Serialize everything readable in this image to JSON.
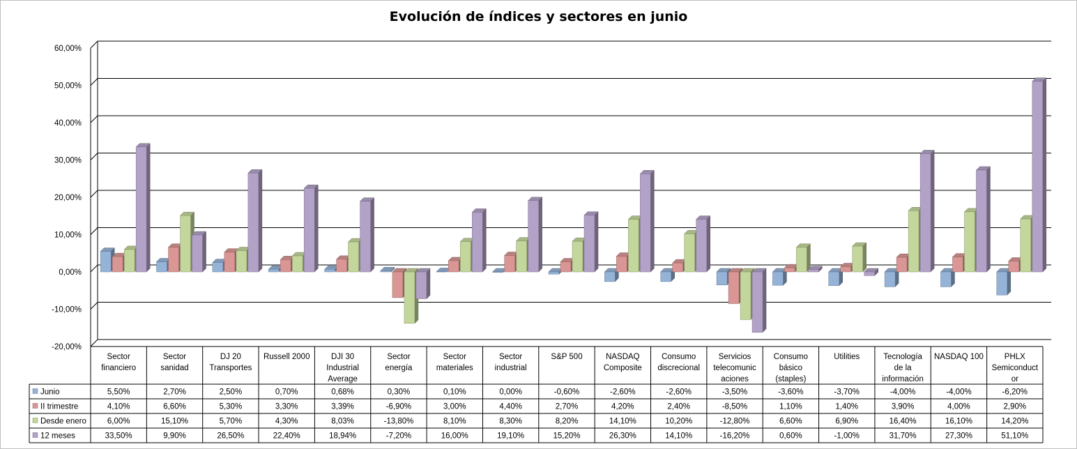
{
  "chart_data": {
    "type": "bar",
    "title": "Evolución de índices y sectores en junio",
    "categories": [
      "Sector financiero",
      "Sector sanidad",
      "DJ 20 Transportes",
      "Russell 2000",
      "DJI 30 Industrial Average",
      "Sector energía",
      "Sector materiales",
      "Sector industrial",
      "S&P 500",
      "NASDAQ Composite",
      "Consumo discrecional",
      "Servicios telecomunicaciones",
      "Consumo básico (staples)",
      "Utilities",
      "Tecnología de la información",
      "NASDAQ 100",
      "PHLX Semiconductor"
    ],
    "category_label_lines": [
      [
        "Sector",
        "financiero"
      ],
      [
        "Sector",
        "sanidad"
      ],
      [
        "DJ 20",
        "Transportes"
      ],
      [
        "Russell 2000"
      ],
      [
        "DJI 30",
        "Industrial",
        "Average"
      ],
      [
        "Sector",
        "energía"
      ],
      [
        "Sector",
        "materiales"
      ],
      [
        "Sector",
        "industrial"
      ],
      [
        "S&P 500"
      ],
      [
        "NASDAQ",
        "Composite"
      ],
      [
        "Consumo",
        "discrecional"
      ],
      [
        "Servicios",
        "telecomunic",
        "aciones"
      ],
      [
        "Consumo",
        "básico",
        "(staples)"
      ],
      [
        "Utilities"
      ],
      [
        "Tecnología",
        "de la",
        "información"
      ],
      [
        "NASDAQ 100"
      ],
      [
        "PHLX",
        "Semiconduct",
        "or"
      ]
    ],
    "series": [
      {
        "name": "Junio",
        "color": "#95b3d7",
        "values": [
          5.5,
          2.7,
          2.5,
          0.7,
          0.68,
          0.3,
          0.1,
          0.0,
          -0.6,
          -2.6,
          -2.6,
          -3.5,
          -3.6,
          -3.7,
          -4.0,
          -4.0,
          -6.2
        ],
        "labels": [
          "5,50%",
          "2,70%",
          "2,50%",
          "0,70%",
          "0,68%",
          "0,30%",
          "0,10%",
          "0,00%",
          "-0,60%",
          "-2,60%",
          "-2,60%",
          "-3,50%",
          "-3,60%",
          "-3,70%",
          "-4,00%",
          "-4,00%",
          "-6,20%"
        ]
      },
      {
        "name": "II trimestre",
        "color": "#d99694",
        "values": [
          4.1,
          6.6,
          5.3,
          3.3,
          3.39,
          -6.9,
          3.0,
          4.4,
          2.7,
          4.2,
          2.4,
          -8.5,
          1.1,
          1.4,
          3.9,
          4.0,
          2.9
        ],
        "labels": [
          "4,10%",
          "6,60%",
          "5,30%",
          "3,30%",
          "3,39%",
          "-6,90%",
          "3,00%",
          "4,40%",
          "2,70%",
          "4,20%",
          "2,40%",
          "-8,50%",
          "1,10%",
          "1,40%",
          "3,90%",
          "4,00%",
          "2,90%"
        ]
      },
      {
        "name": "Desde enero",
        "color": "#c3d69b",
        "values": [
          6.0,
          15.1,
          5.7,
          4.3,
          8.03,
          -13.8,
          8.1,
          8.3,
          8.2,
          14.1,
          10.2,
          -12.8,
          6.6,
          6.9,
          16.4,
          16.1,
          14.2
        ],
        "labels": [
          "6,00%",
          "15,10%",
          "5,70%",
          "4,30%",
          "8,03%",
          "-13,80%",
          "8,10%",
          "8,30%",
          "8,20%",
          "14,10%",
          "10,20%",
          "-12,80%",
          "6,60%",
          "6,90%",
          "16,40%",
          "16,10%",
          "14,20%"
        ]
      },
      {
        "name": "12 meses",
        "color": "#b3a2c7",
        "values": [
          33.5,
          9.9,
          26.5,
          22.4,
          18.94,
          -7.2,
          16.0,
          19.1,
          15.2,
          26.3,
          14.1,
          -16.2,
          0.6,
          -1.0,
          31.7,
          27.3,
          51.1
        ],
        "labels": [
          "33,50%",
          "9,90%",
          "26,50%",
          "22,40%",
          "18,94%",
          "-7,20%",
          "16,00%",
          "19,10%",
          "15,20%",
          "26,30%",
          "14,10%",
          "-16,20%",
          "0,60%",
          "-1,00%",
          "31,70%",
          "27,30%",
          "51,10%"
        ]
      }
    ],
    "ylim": [
      -20,
      60
    ],
    "yticks": [
      60,
      50,
      40,
      30,
      20,
      10,
      0,
      -10,
      -20
    ],
    "ytick_labels": [
      "60,00%",
      "50,00%",
      "40,00%",
      "30,00%",
      "20,00%",
      "10,00%",
      "0,00%",
      "-10,00%",
      "-20,00%"
    ],
    "grid": true,
    "legend": "data-table",
    "style": "3d-clustered-column"
  }
}
